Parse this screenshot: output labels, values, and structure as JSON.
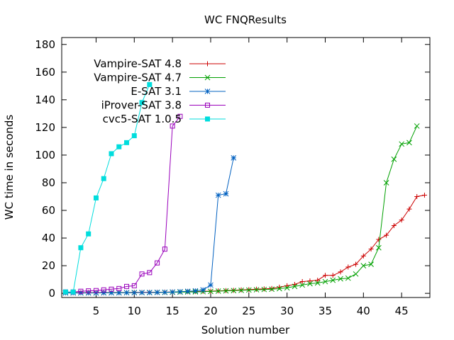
{
  "chart_data": {
    "type": "line",
    "title": "WC FNQResults",
    "xlabel": "Solution number",
    "ylabel": "WC time in seconds",
    "xlim": [
      0.5,
      48.7
    ],
    "ylim": [
      -3,
      185
    ],
    "x_ticks": [
      5,
      10,
      15,
      20,
      25,
      30,
      35,
      40,
      45
    ],
    "y_ticks": [
      0,
      20,
      40,
      60,
      80,
      100,
      120,
      140,
      160,
      180
    ],
    "grid": false,
    "legend_position": "top-left",
    "series": [
      {
        "name": "Vampire-SAT 4.8",
        "color": "#cc0000",
        "marker": "plus",
        "x": [
          1,
          2,
          3,
          4,
          5,
          6,
          7,
          8,
          9,
          10,
          11,
          12,
          13,
          14,
          15,
          16,
          17,
          18,
          19,
          20,
          21,
          22,
          23,
          24,
          25,
          26,
          27,
          28,
          29,
          30,
          31,
          32,
          33,
          34,
          35,
          36,
          37,
          38,
          39,
          40,
          41,
          42,
          43,
          44,
          45,
          46,
          47,
          48
        ],
        "y": [
          0.5,
          0.5,
          0.5,
          0.5,
          0.5,
          0.5,
          0.6,
          0.6,
          0.6,
          0.7,
          0.7,
          0.8,
          0.8,
          0.9,
          1,
          1.1,
          1.2,
          1.3,
          1.5,
          1.6,
          1.8,
          2,
          2.2,
          2.5,
          2.7,
          3,
          3.2,
          3.5,
          4.5,
          5.5,
          6.5,
          8.5,
          9,
          9.5,
          13,
          13,
          15.5,
          19,
          21,
          27,
          32,
          39,
          42,
          49,
          53,
          61,
          70,
          71
        ]
      },
      {
        "name": "Vampire-SAT 4.7",
        "color": "#00a000",
        "marker": "cross",
        "x": [
          1,
          2,
          3,
          4,
          5,
          6,
          7,
          8,
          9,
          10,
          11,
          12,
          13,
          14,
          15,
          16,
          17,
          18,
          19,
          20,
          21,
          22,
          23,
          24,
          25,
          26,
          27,
          28,
          29,
          30,
          31,
          32,
          33,
          34,
          35,
          36,
          37,
          38,
          39,
          40,
          41,
          42,
          43,
          44,
          45,
          46,
          47
        ],
        "y": [
          0.4,
          0.4,
          0.4,
          0.4,
          0.4,
          0.5,
          0.5,
          0.5,
          0.5,
          0.6,
          0.6,
          0.6,
          0.7,
          0.7,
          0.8,
          0.9,
          1,
          1.1,
          1.2,
          1.4,
          1.6,
          1.8,
          2,
          2.2,
          2.4,
          2.6,
          2.8,
          3,
          3.4,
          4,
          5,
          6,
          7,
          7.5,
          8.5,
          9.5,
          10.5,
          11,
          14,
          20,
          21,
          33,
          80,
          97,
          108,
          109,
          121
        ]
      },
      {
        "name": "E-SAT 3.1",
        "color": "#0060c0",
        "marker": "star",
        "x": [
          1,
          2,
          3,
          4,
          5,
          6,
          7,
          8,
          9,
          10,
          11,
          12,
          13,
          14,
          15,
          16,
          17,
          18,
          19,
          20,
          21,
          22,
          23
        ],
        "y": [
          0.3,
          0.3,
          0.3,
          0.3,
          0.3,
          0.4,
          0.4,
          0.4,
          0.5,
          0.5,
          0.6,
          0.6,
          0.7,
          0.8,
          1,
          1.2,
          1.5,
          1.8,
          2.5,
          6,
          71,
          72,
          98
        ]
      },
      {
        "name": "iProver-SAT 3.8",
        "color": "#9900bb",
        "marker": "square",
        "x": [
          1,
          2,
          3,
          4,
          5,
          6,
          7,
          8,
          9,
          10,
          11,
          12,
          13,
          14,
          15,
          16
        ],
        "y": [
          1,
          1,
          1.5,
          1.8,
          2,
          2.5,
          3,
          3.5,
          5,
          5.5,
          14,
          15,
          22,
          32,
          121,
          128
        ]
      },
      {
        "name": "cvc5-SAT 1.0.5",
        "color": "#00dddd",
        "marker": "filled-square",
        "x": [
          1,
          2,
          3,
          4,
          5,
          6,
          7,
          8,
          9,
          10,
          11,
          12
        ],
        "y": [
          1,
          1,
          33,
          43,
          69,
          83,
          101,
          106,
          109,
          114,
          138,
          151
        ]
      }
    ]
  }
}
